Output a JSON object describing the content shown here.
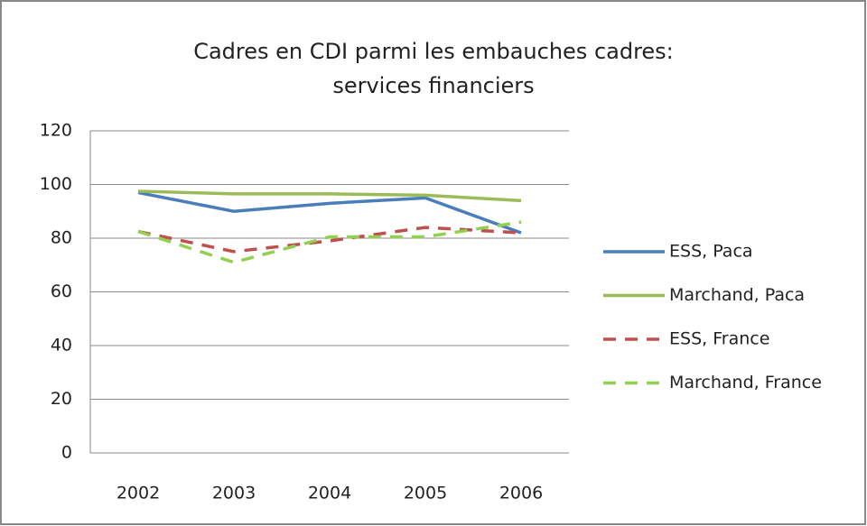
{
  "chart_data": {
    "type": "line",
    "title": [
      "Cadres en CDI parmi les embauches cadres:",
      "services financiers"
    ],
    "categories": [
      "2002",
      "2003",
      "2004",
      "2005",
      "2006"
    ],
    "series": [
      {
        "name": "ESS, Paca",
        "color": "#4a7ebb",
        "dashed": false,
        "values": [
          97,
          90,
          93,
          95,
          82
        ]
      },
      {
        "name": "Marchand, Paca",
        "color": "#9bbb59",
        "dashed": false,
        "values": [
          97.5,
          96.5,
          96.5,
          96,
          94
        ]
      },
      {
        "name": "ESS, France",
        "color": "#c0504d",
        "dashed": true,
        "values": [
          82.5,
          75,
          79,
          84,
          82
        ]
      },
      {
        "name": "Marchand, France",
        "color": "#92d050",
        "dashed": true,
        "values": [
          82.5,
          71,
          80.5,
          80.5,
          86
        ]
      }
    ],
    "ylim": [
      0,
      120
    ],
    "yticks": [
      0,
      20,
      40,
      60,
      80,
      100,
      120
    ],
    "grid": true,
    "legend": "right"
  }
}
